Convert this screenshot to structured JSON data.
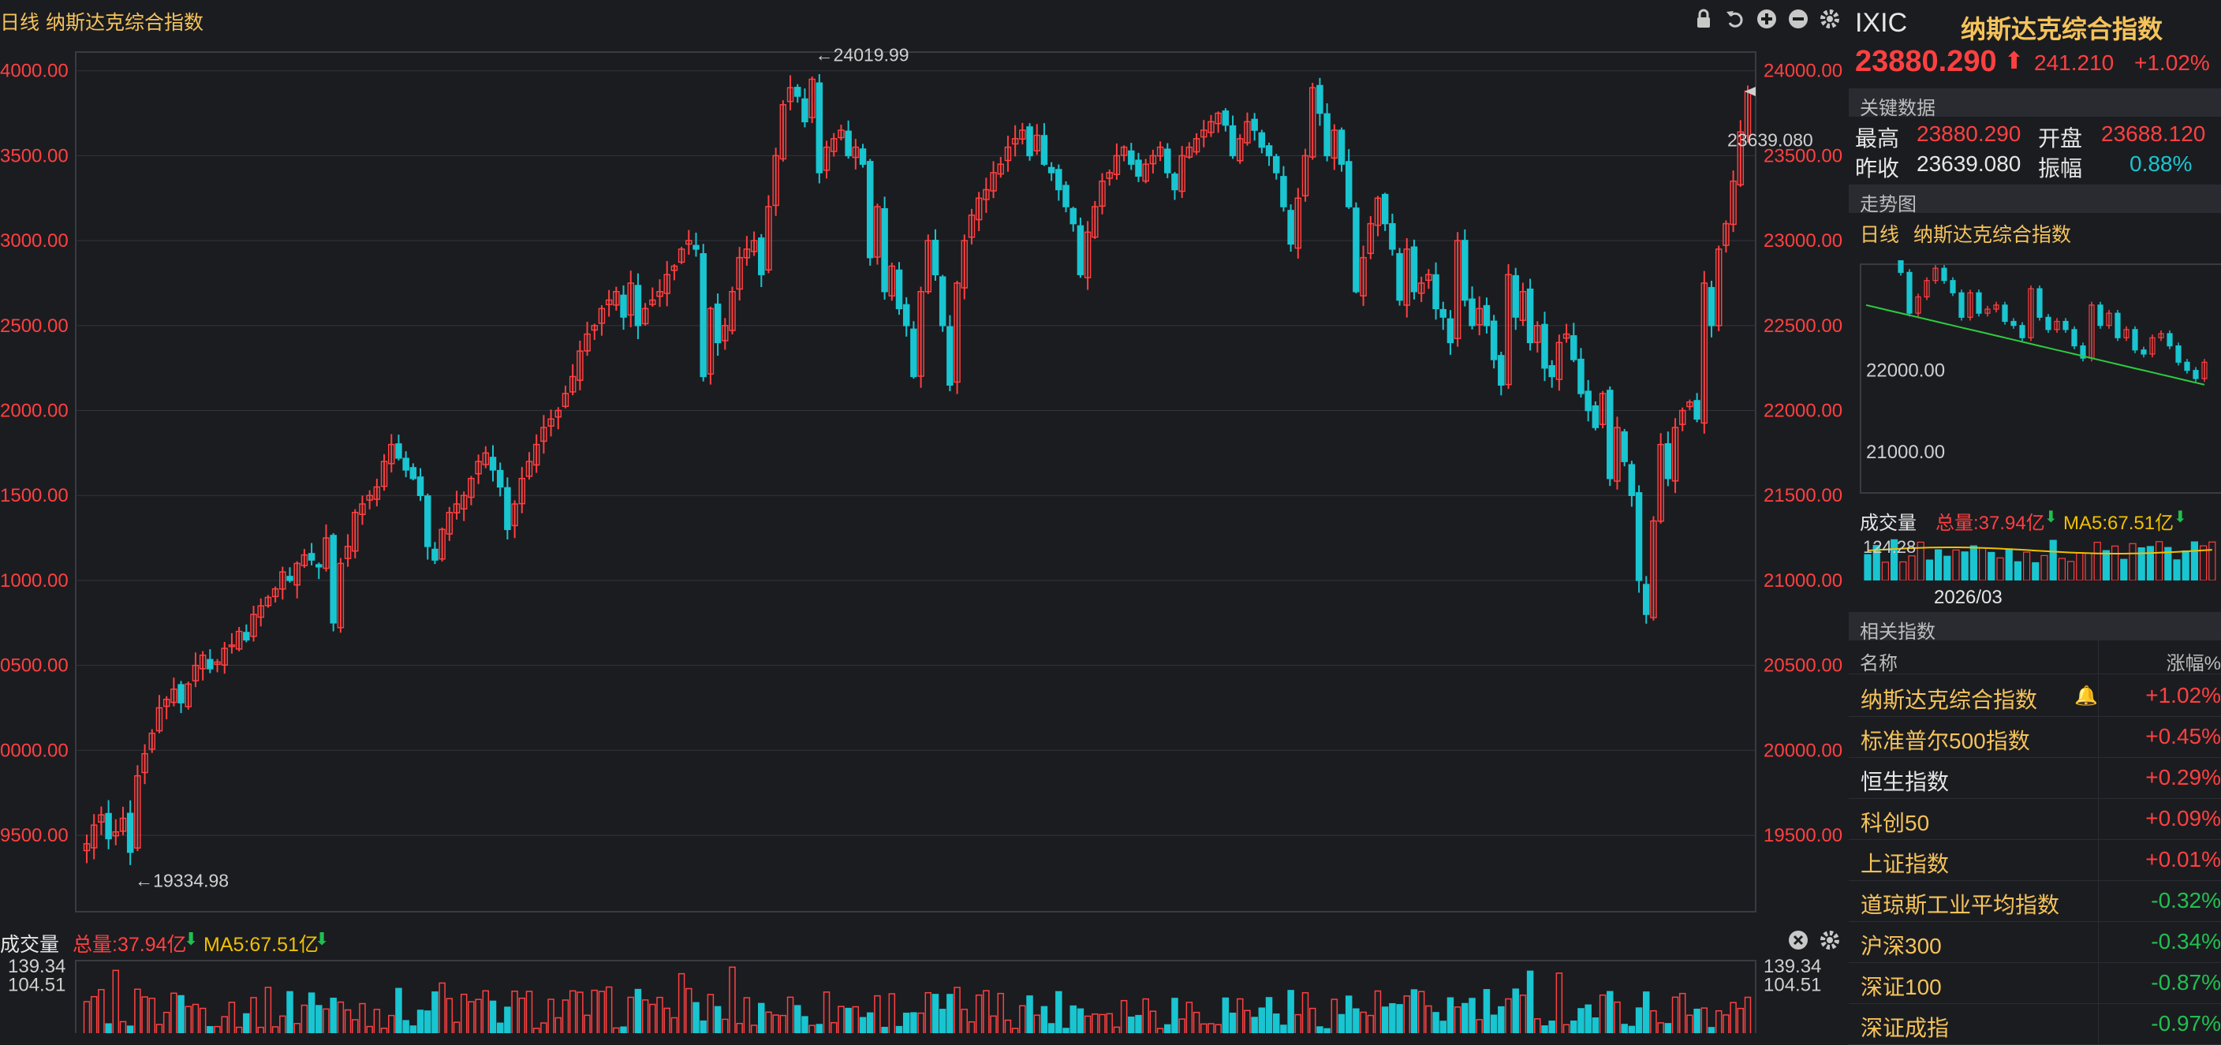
{
  "main_header": {
    "period": "日线",
    "title": "纳斯达克综合指数"
  },
  "icons": [
    "lock-icon",
    "undo-icon",
    "zoom-in-icon",
    "zoom-out-icon",
    "gear-icon"
  ],
  "chart_data": [
    {
      "type": "candlestick",
      "title": "纳斯达克综合指数",
      "ylim": [
        19050,
        24110
      ],
      "y_ticks": [
        "24000.00",
        "23500.00",
        "23000.00",
        "22500.00",
        "22000.00",
        "21500.00",
        "21000.00",
        "20500.00",
        "20000.00",
        "19500.00"
      ],
      "y_tick_values": [
        24000,
        23500,
        23000,
        22500,
        22000,
        21500,
        21000,
        20500,
        20000,
        19500
      ],
      "left_tick_labels": [
        "4000.00",
        "3500.00",
        "3000.00",
        "2500.00",
        "2000.00",
        "1500.00",
        "1000.00",
        "0500.00",
        "0000.00",
        "9500.00"
      ],
      "annotations": {
        "max_label": "←24019.99",
        "max_value": 24019.99,
        "min_label": "←19334.98",
        "min_value": 19334.98,
        "prev_close_label": "23639.080",
        "prev_close_value": 23639.08
      },
      "colors": {
        "up": "#ff4040",
        "down": "#19c5d0",
        "grid": "#33343a",
        "axis": "#ff4040"
      },
      "close": [
        19450,
        19560,
        19620,
        19480,
        19520,
        19600,
        19400,
        19850,
        19980,
        20100,
        20250,
        20300,
        20360,
        20280,
        20390,
        20500,
        20560,
        20480,
        20520,
        20600,
        20620,
        20700,
        20650,
        20800,
        20850,
        20900,
        20950,
        21050,
        21000,
        21100,
        21150,
        21120,
        21080,
        21250,
        20750,
        21100,
        21200,
        21400,
        21450,
        21500,
        21550,
        21700,
        21800,
        21720,
        21650,
        21600,
        21500,
        21200,
        21120,
        21300,
        21400,
        21450,
        21500,
        21600,
        21700,
        21750,
        21650,
        21550,
        21300,
        21450,
        21600,
        21700,
        21800,
        21900,
        21950,
        22000,
        22100,
        22200,
        22350,
        22450,
        22500,
        22600,
        22650,
        22700,
        22550,
        22750,
        22500,
        22600,
        22650,
        22700,
        22800,
        22850,
        22950,
        23000,
        22950,
        22200,
        22600,
        22400,
        22500,
        22700,
        22900,
        22950,
        23000,
        22800,
        23200,
        23500,
        23800,
        23900,
        23850,
        23700,
        23950,
        23400,
        23550,
        23600,
        23650,
        23500,
        23550,
        23450,
        22900,
        23200,
        22700,
        22850,
        22600,
        22500,
        22200,
        22700,
        23000,
        22800,
        22500,
        22150,
        22750,
        23000,
        23150,
        23250,
        23300,
        23400,
        23450,
        23550,
        23600,
        23650,
        23500,
        23620,
        23450,
        23400,
        23300,
        23200,
        23100,
        22800,
        23050,
        23200,
        23350,
        23400,
        23500,
        23550,
        23450,
        23380,
        23450,
        23500,
        23550,
        23400,
        23300,
        23500,
        23550,
        23600,
        23650,
        23700,
        23750,
        23680,
        23500,
        23600,
        23700,
        23650,
        23550,
        23500,
        23400,
        23200,
        22980,
        23250,
        23500,
        23900,
        23750,
        23500,
        23650,
        23450,
        23200,
        22700,
        22900,
        23100,
        23250,
        23100,
        22950,
        22650,
        22950,
        22700,
        22750,
        22800,
        22600,
        22550,
        22400,
        23000,
        22650,
        22500,
        22600,
        22500,
        22300,
        22150,
        22800,
        22550,
        22700,
        22400,
        22500,
        22250,
        22200,
        22400,
        22450,
        22300,
        22100,
        22000,
        21900,
        22100,
        21600,
        21900,
        21700,
        21500,
        21000,
        20800,
        21350,
        21800,
        21600,
        21900,
        22000,
        22050,
        21950,
        22750,
        22500,
        22950,
        23100,
        23350,
        23640,
        23880
      ],
      "vol_panel": {
        "title": "成交量",
        "total_label": "总量:37.94亿",
        "ma5_label": "MA5:67.51亿",
        "ticks": [
          "139.34",
          "104.51"
        ],
        "tick_values": [
          139.34,
          104.51
        ],
        "ylim": [
          0,
          150
        ]
      }
    },
    {
      "type": "line",
      "title": "走势图",
      "subtitle_period": "日线",
      "subtitle_name": "纳斯达克综合指数",
      "y_ticks": [
        "22000.00",
        "21000.00"
      ],
      "y_tick_values": [
        22000,
        21000
      ],
      "ylim": [
        20500,
        23300
      ],
      "vol_title": "成交量",
      "vol_total": "总量:37.94亿",
      "vol_ma5": "MA5:67.51亿",
      "vol_tick": "124.28",
      "vol_tick_value": 124.28,
      "x_tick_label": "2026/03"
    }
  ],
  "panel": {
    "code": "IXIC",
    "name": "纳斯达克综合指数",
    "price": "23880.290",
    "change": "241.210",
    "change_pct": "+1.02%",
    "key_data_title": "关键数据",
    "high_label": "最高",
    "high_value": "23880.290",
    "open_label": "开盘",
    "open_value": "23688.120",
    "prev_close_label": "昨收",
    "prev_close_value": "23639.080",
    "amplitude_label": "振幅",
    "amplitude_value": "0.88%",
    "related_title": "相关指数",
    "col_name": "名称",
    "col_change": "涨幅%",
    "related": [
      {
        "name": "纳斯达克综合指数",
        "change": "+1.02%",
        "dir": "up",
        "name_color": "gold"
      },
      {
        "name": "标准普尔500指数",
        "change": "+0.45%",
        "dir": "up",
        "name_color": "gold"
      },
      {
        "name": "恒生指数",
        "change": "+0.29%",
        "dir": "up",
        "name_color": "wht"
      },
      {
        "name": "科创50",
        "change": "+0.09%",
        "dir": "up",
        "name_color": "gold"
      },
      {
        "name": "上证指数",
        "change": "+0.01%",
        "dir": "up",
        "name_color": "gold"
      },
      {
        "name": "道琼斯工业平均指数",
        "change": "-0.32%",
        "dir": "down",
        "name_color": "gold"
      },
      {
        "name": "沪深300",
        "change": "-0.34%",
        "dir": "down",
        "name_color": "gold"
      },
      {
        "name": "深证100",
        "change": "-0.87%",
        "dir": "down",
        "name_color": "gold"
      },
      {
        "name": "深证成指",
        "change": "-0.97%",
        "dir": "down",
        "name_color": "gold"
      }
    ]
  }
}
